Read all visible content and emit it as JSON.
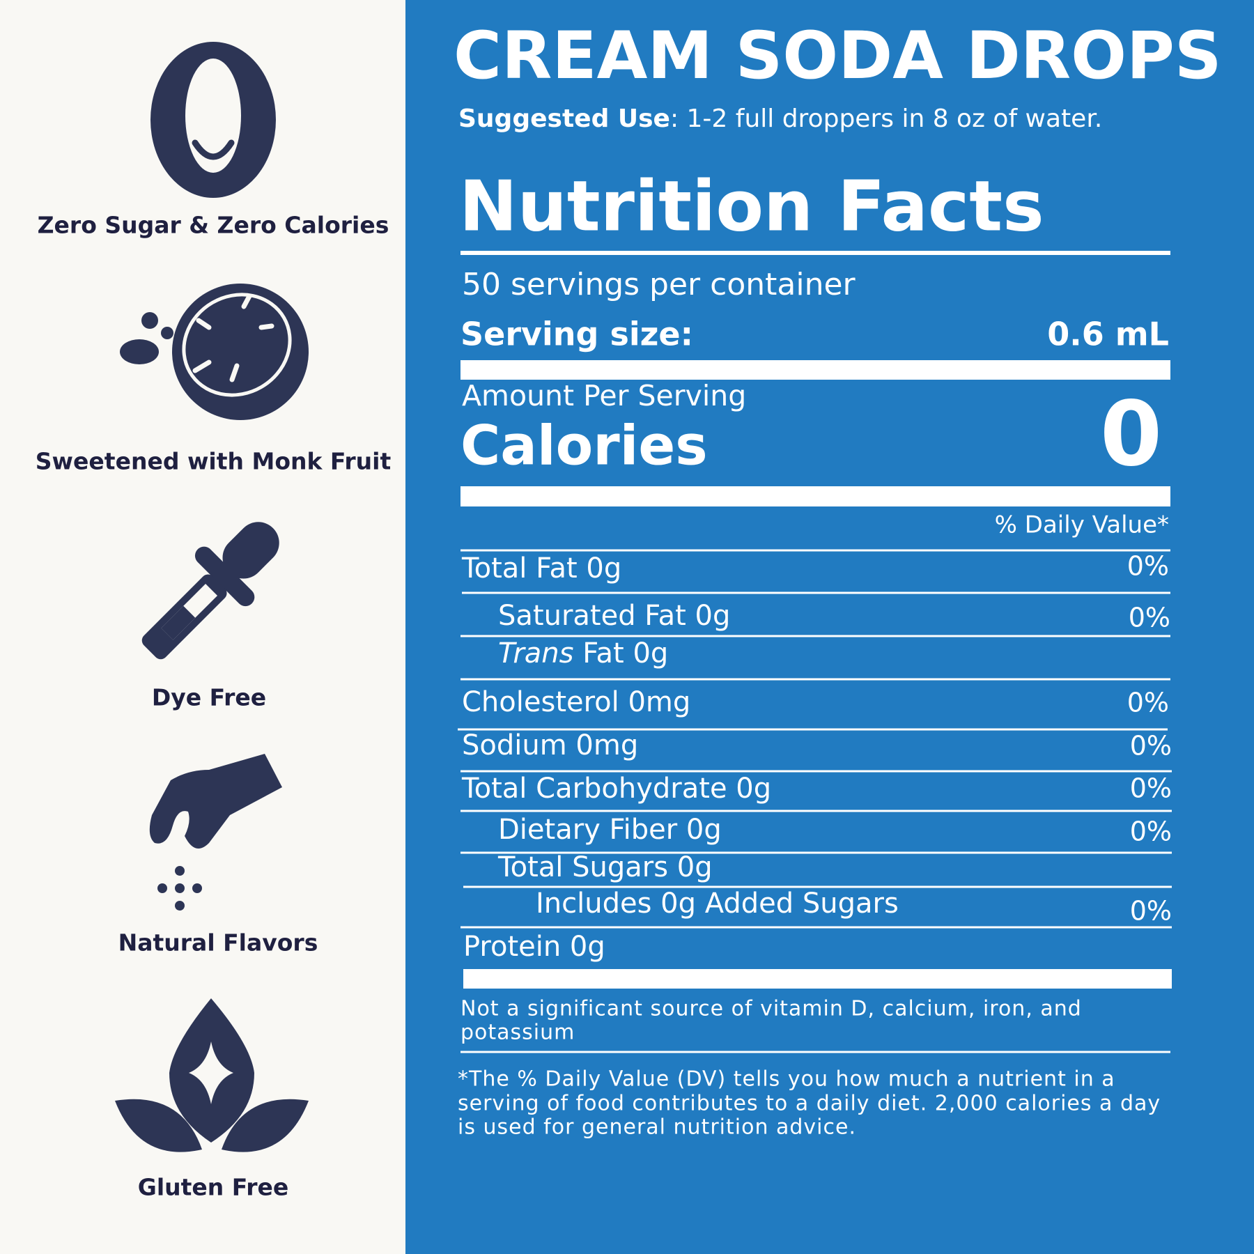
{
  "features": [
    "Zero Sugar & Zero Calories",
    "Sweetened with Monk Fruit",
    "Dye Free",
    "Natural Flavors",
    "Gluten Free"
  ],
  "header": {
    "title": "CREAM SODA DROPS",
    "suggested_use_label": "Suggested Use",
    "suggested_use_text": ": 1-2 full droppers in 8 oz of water."
  },
  "nutrition": {
    "heading": "Nutrition Facts",
    "servings": "50 servings per container",
    "serving_size_label": "Serving size:",
    "serving_size_value": "0.6 mL",
    "amount_per_serving": "Amount Per Serving",
    "calories_label": "Calories",
    "calories_value": "0",
    "dv_header": "% Daily Value*",
    "rows": [
      {
        "label": "Total Fat 0g",
        "dv": "0%"
      },
      {
        "label": "Saturated Fat 0g",
        "dv": "0%"
      },
      {
        "label_italic": "Trans",
        "label": "Fat 0g"
      },
      {
        "label": "Cholesterol 0mg",
        "dv": "0%"
      },
      {
        "label": "Sodium 0mg",
        "dv": "0%"
      },
      {
        "label": "Total Carbohydrate 0g",
        "dv": "0%"
      },
      {
        "label": "Dietary Fiber 0g",
        "dv": "0%"
      },
      {
        "label": "Total Sugars 0g"
      },
      {
        "label": "Includes 0g Added Sugars",
        "dv": "0%"
      },
      {
        "label": "Protein 0g"
      }
    ],
    "not_significant": [
      "Not a significant source of vitamin D, calcium, iron, and",
      "potassium"
    ],
    "footnote": [
      "*The % Daily Value (DV) tells you how much a nutrient in a",
      "serving of food contributes to a daily diet. 2,000 calories a day",
      "is used for general nutrition advice."
    ]
  }
}
